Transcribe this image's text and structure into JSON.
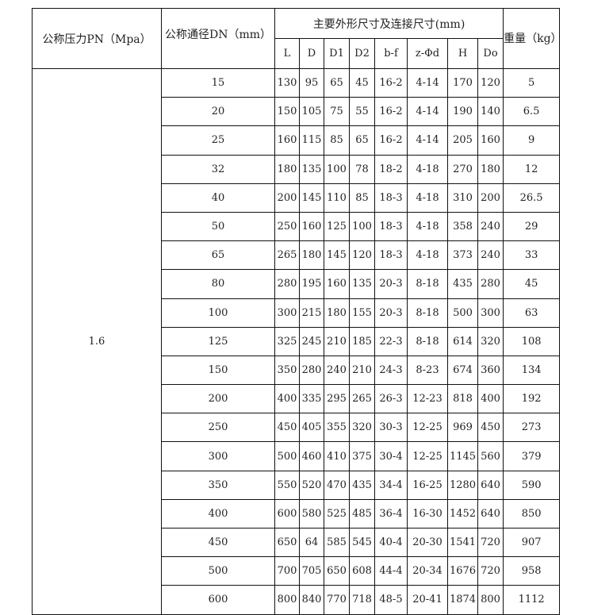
{
  "header": {
    "pressure": "公称压力PN（Mpa）",
    "diameter": "公称通径DN（mm）",
    "dimensions": "主要外形尺寸及连接尺寸(mm)",
    "weight": "重量（kg）",
    "columns": [
      "L",
      "D",
      "D1",
      "D2",
      "b-f",
      "z-Φd",
      "H",
      "Do"
    ]
  },
  "pressure_value": "1.6",
  "rows": [
    [
      "15",
      "130",
      "95",
      "65",
      "45",
      "16-2",
      "4-14",
      "170",
      "120",
      "5"
    ],
    [
      "20",
      "150",
      "105",
      "75",
      "55",
      "16-2",
      "4-14",
      "190",
      "140",
      "6.5"
    ],
    [
      "25",
      "160",
      "115",
      "85",
      "65",
      "16-2",
      "4-14",
      "205",
      "160",
      "9"
    ],
    [
      "32",
      "180",
      "135",
      "100",
      "78",
      "18-2",
      "4-18",
      "270",
      "180",
      "12"
    ],
    [
      "40",
      "200",
      "145",
      "110",
      "85",
      "18-3",
      "4-18",
      "310",
      "200",
      "26.5"
    ],
    [
      "50",
      "250",
      "160",
      "125",
      "100",
      "18-3",
      "4-18",
      "358",
      "240",
      "29"
    ],
    [
      "65",
      "265",
      "180",
      "145",
      "120",
      "18-3",
      "4-18",
      "373",
      "240",
      "33"
    ],
    [
      "80",
      "280",
      "195",
      "160",
      "135",
      "20-3",
      "8-18",
      "435",
      "280",
      "45"
    ],
    [
      "100",
      "300",
      "215",
      "180",
      "155",
      "20-3",
      "8-18",
      "500",
      "300",
      "63"
    ],
    [
      "125",
      "325",
      "245",
      "210",
      "185",
      "22-3",
      "8-18",
      "614",
      "320",
      "108"
    ],
    [
      "150",
      "350",
      "280",
      "240",
      "210",
      "24-3",
      "8-23",
      "674",
      "360",
      "134"
    ],
    [
      "200",
      "400",
      "335",
      "295",
      "265",
      "26-3",
      "12-23",
      "818",
      "400",
      "192"
    ],
    [
      "250",
      "450",
      "405",
      "355",
      "320",
      "30-3",
      "12-25",
      "969",
      "450",
      "273"
    ],
    [
      "300",
      "500",
      "460",
      "410",
      "375",
      "30-4",
      "12-25",
      "1145",
      "560",
      "379"
    ],
    [
      "350",
      "550",
      "520",
      "470",
      "435",
      "34-4",
      "16-25",
      "1280",
      "640",
      "590"
    ],
    [
      "400",
      "600",
      "580",
      "525",
      "485",
      "36-4",
      "16-30",
      "1452",
      "640",
      "850"
    ],
    [
      "450",
      "650",
      "64",
      "585",
      "545",
      "40-4",
      "20-30",
      "1541",
      "720",
      "907"
    ],
    [
      "500",
      "700",
      "705",
      "650",
      "608",
      "44-4",
      "20-34",
      "1676",
      "720",
      "958"
    ],
    [
      "600",
      "800",
      "840",
      "770",
      "718",
      "48-5",
      "20-41",
      "1874",
      "800",
      "1112"
    ]
  ]
}
